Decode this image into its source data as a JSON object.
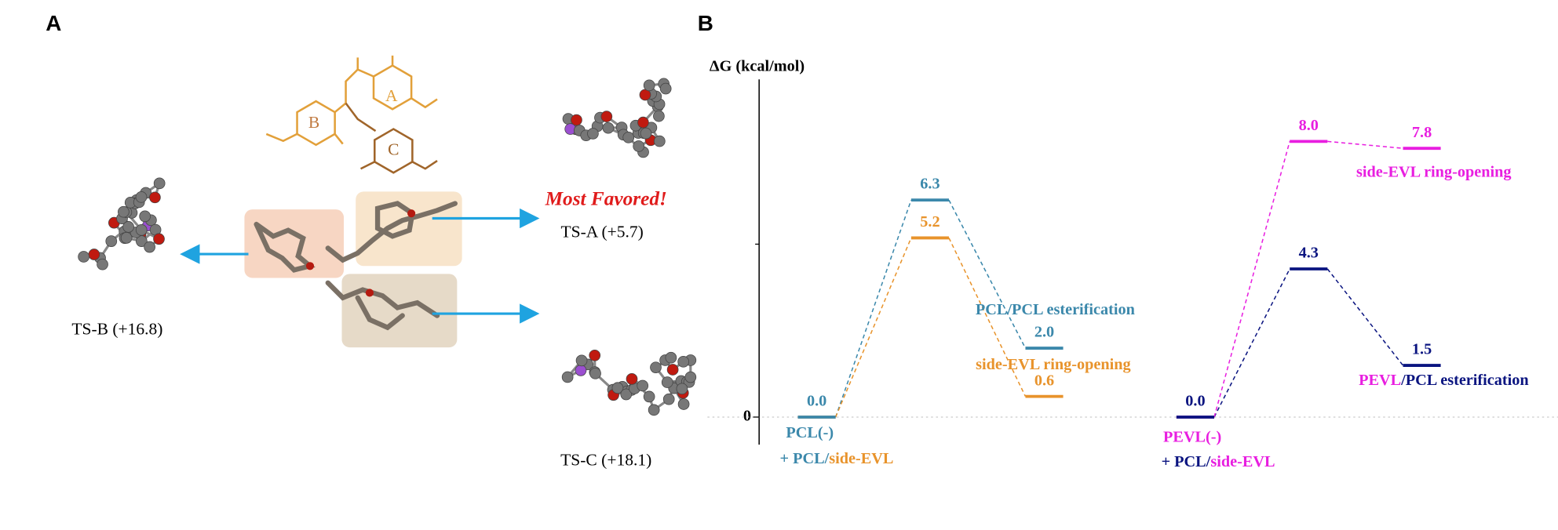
{
  "panel_a": {
    "label": "A",
    "rings": [
      "A",
      "B",
      "C"
    ],
    "headline": "Most Favored!",
    "structures": [
      "TS-A (+5.7)",
      "TS-B (+16.8)",
      "TS-C (+18.1)"
    ]
  },
  "chart_data": {
    "type": "energy-diagram",
    "panel_label": "B",
    "y_label": "ΔG (kcal/mol)",
    "ylim": [
      -0.8,
      9.8
    ],
    "yticks": [
      0
    ],
    "groups": [
      {
        "series": [
          {
            "color": "#3b88ab",
            "values": [
              0.0,
              6.3,
              2.0
            ],
            "value_labels": [
              "0.0",
              "6.3",
              "2.0"
            ]
          },
          {
            "color": "#e8932b",
            "values": [
              0.0,
              5.2,
              0.6
            ],
            "value_labels": [
              null,
              "5.2",
              "0.6"
            ]
          }
        ],
        "annotations": [
          {
            "parts": [
              {
                "text": "PCL(-)",
                "color": "#3b88ab"
              }
            ]
          },
          {
            "parts": [
              {
                "text": "+ PCL/",
                "color": "#3b88ab"
              },
              {
                "text": "side-EVL",
                "color": "#e8932b"
              }
            ]
          },
          {
            "parts": [
              {
                "text": "PCL/PCL esterification",
                "color": "#3b88ab"
              }
            ]
          },
          {
            "parts": [
              {
                "text": "side-EVL ring-opening",
                "color": "#e8932b"
              }
            ]
          }
        ]
      },
      {
        "series": [
          {
            "color": "#0a1480",
            "values": [
              0.0,
              4.3,
              1.5
            ],
            "value_labels": [
              "0.0",
              "4.3",
              "1.5"
            ]
          },
          {
            "color": "#e81ee0",
            "values": [
              0.0,
              8.0,
              7.8
            ],
            "value_labels": [
              null,
              "8.0",
              "7.8"
            ]
          }
        ],
        "annotations": [
          {
            "parts": [
              {
                "text": "PEVL(-)",
                "color": "#e81ee0"
              }
            ]
          },
          {
            "parts": [
              {
                "text": "+ PCL/",
                "color": "#0a1480"
              },
              {
                "text": "side-EVL",
                "color": "#e81ee0"
              }
            ]
          },
          {
            "parts": [
              {
                "text": "side-EVL ring-opening",
                "color": "#e81ee0"
              }
            ]
          },
          {
            "parts": [
              {
                "text": "PEVL",
                "color": "#e81ee0"
              },
              {
                "text": "/PCL esterification",
                "color": "#0a1480"
              }
            ]
          }
        ]
      }
    ]
  }
}
